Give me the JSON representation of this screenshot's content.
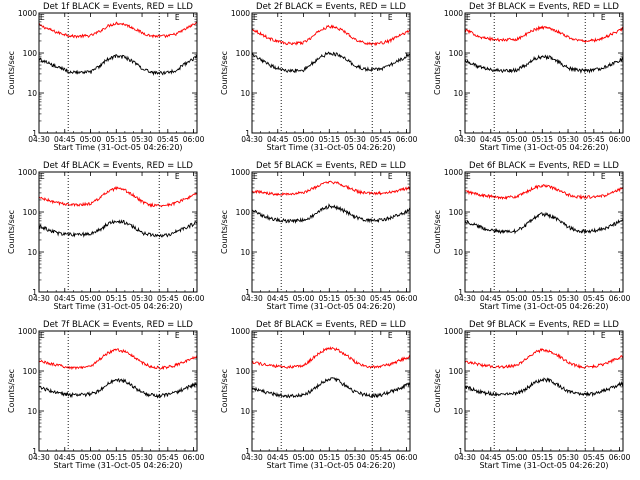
{
  "figure": {
    "x_tick_labels": [
      "04:30",
      "04:45",
      "05:00",
      "05:15",
      "05:30",
      "05:45",
      "06:00"
    ],
    "y_tick_labels": [
      "1",
      "10",
      "100",
      "1000"
    ],
    "xlabel": "Start Time (31-Oct-05 04:26:20)",
    "ylabel": "Counts/sec",
    "marker_E": "E",
    "colors": {
      "events": "#000000",
      "lld": "#ff0000",
      "axes": "#000000"
    }
  },
  "chart_data": [
    {
      "type": "line",
      "title": "Det 1f BLACK = Events, RED = LLD",
      "xlabel": "Start Time (31-Oct-05 04:26:20)",
      "ylabel": "Counts/sec",
      "y_scale": "log",
      "ylim": [
        1,
        1000
      ],
      "xlim": [
        "04:30",
        "06:02"
      ],
      "x_ticks": [
        "04:30",
        "04:45",
        "05:00",
        "05:15",
        "05:30",
        "05:45",
        "06:00"
      ],
      "y_ticks": [
        1,
        10,
        100,
        1000
      ],
      "vertical_markers": [
        "04:47",
        "05:40"
      ],
      "x": [
        "04:30",
        "04:40",
        "04:50",
        "05:00",
        "05:05",
        "05:10",
        "05:15",
        "05:20",
        "05:25",
        "05:30",
        "05:35",
        "05:40",
        "05:45",
        "05:50",
        "05:55",
        "06:00",
        "06:02"
      ],
      "series": [
        {
          "name": "LLD",
          "color": "#ff0000",
          "values": [
            500,
            330,
            260,
            270,
            340,
            470,
            560,
            520,
            420,
            320,
            270,
            260,
            265,
            300,
            390,
            520,
            560
          ]
        },
        {
          "name": "Events",
          "color": "#000000",
          "values": [
            70,
            45,
            32,
            33,
            45,
            70,
            85,
            78,
            60,
            42,
            33,
            31,
            32,
            38,
            52,
            72,
            80
          ]
        }
      ]
    },
    {
      "type": "line",
      "title": "Det 2f BLACK = Events, RED = LLD",
      "xlabel": "Start Time (31-Oct-05 04:26:20)",
      "ylabel": "Counts/sec",
      "y_scale": "log",
      "ylim": [
        1,
        1000
      ],
      "xlim": [
        "04:30",
        "06:02"
      ],
      "x_ticks": [
        "04:30",
        "04:45",
        "05:00",
        "05:15",
        "05:30",
        "05:45",
        "06:00"
      ],
      "y_ticks": [
        1,
        10,
        100,
        1000
      ],
      "vertical_markers": [
        "04:47",
        "05:40"
      ],
      "x": [
        "04:30",
        "04:40",
        "04:50",
        "05:00",
        "05:05",
        "05:10",
        "05:15",
        "05:20",
        "05:25",
        "05:30",
        "05:35",
        "05:40",
        "05:45",
        "05:50",
        "05:55",
        "06:00",
        "06:02"
      ],
      "series": [
        {
          "name": "LLD",
          "color": "#ff0000",
          "values": [
            400,
            230,
            170,
            180,
            250,
            380,
            460,
            420,
            320,
            220,
            180,
            170,
            175,
            200,
            260,
            330,
            380
          ]
        },
        {
          "name": "Events",
          "color": "#000000",
          "values": [
            90,
            50,
            35,
            38,
            55,
            80,
            100,
            90,
            68,
            48,
            40,
            38,
            40,
            48,
            62,
            85,
            95
          ]
        }
      ]
    },
    {
      "type": "line",
      "title": "Det 3f BLACK = Events, RED = LLD",
      "xlabel": "Start Time (31-Oct-05 04:26:20)",
      "ylabel": "Counts/sec",
      "y_scale": "log",
      "ylim": [
        1,
        1000
      ],
      "xlim": [
        "04:30",
        "06:02"
      ],
      "x_ticks": [
        "04:30",
        "04:45",
        "05:00",
        "05:15",
        "05:30",
        "05:45",
        "06:00"
      ],
      "y_ticks": [
        1,
        10,
        100,
        1000
      ],
      "vertical_markers": [
        "04:47",
        "05:40"
      ],
      "x": [
        "04:30",
        "04:40",
        "04:50",
        "05:00",
        "05:05",
        "05:10",
        "05:15",
        "05:20",
        "05:25",
        "05:30",
        "05:35",
        "05:40",
        "05:45",
        "05:50",
        "05:55",
        "06:00",
        "06:02"
      ],
      "series": [
        {
          "name": "LLD",
          "color": "#ff0000",
          "values": [
            380,
            240,
            210,
            220,
            280,
            380,
            440,
            410,
            330,
            250,
            210,
            200,
            205,
            230,
            290,
            370,
            410
          ]
        },
        {
          "name": "Events",
          "color": "#000000",
          "values": [
            65,
            42,
            36,
            37,
            48,
            70,
            82,
            76,
            58,
            42,
            37,
            36,
            37,
            42,
            52,
            66,
            72
          ]
        }
      ]
    },
    {
      "type": "line",
      "title": "Det 4f BLACK = Events, RED = LLD",
      "xlabel": "Start Time (31-Oct-05 04:26:20)",
      "ylabel": "Counts/sec",
      "y_scale": "log",
      "ylim": [
        1,
        1000
      ],
      "xlim": [
        "04:30",
        "06:02"
      ],
      "x_ticks": [
        "04:30",
        "04:45",
        "05:00",
        "05:15",
        "05:30",
        "05:45",
        "06:00"
      ],
      "y_ticks": [
        1,
        10,
        100,
        1000
      ],
      "vertical_markers": [
        "04:47",
        "05:40"
      ],
      "x": [
        "04:30",
        "04:40",
        "04:50",
        "05:00",
        "05:05",
        "05:10",
        "05:15",
        "05:20",
        "05:25",
        "05:30",
        "05:35",
        "05:40",
        "05:45",
        "05:50",
        "05:55",
        "06:00",
        "06:02"
      ],
      "series": [
        {
          "name": "LLD",
          "color": "#ff0000",
          "values": [
            230,
            170,
            150,
            160,
            220,
            320,
            390,
            350,
            260,
            180,
            150,
            145,
            150,
            170,
            210,
            260,
            290
          ]
        },
        {
          "name": "Events",
          "color": "#000000",
          "values": [
            45,
            30,
            27,
            28,
            35,
            50,
            60,
            55,
            42,
            30,
            27,
            26,
            27,
            32,
            40,
            50,
            55
          ]
        }
      ]
    },
    {
      "type": "line",
      "title": "Det 5f BLACK = Events, RED = LLD",
      "xlabel": "Start Time (31-Oct-05 04:26:20)",
      "ylabel": "Counts/sec",
      "y_scale": "log",
      "ylim": [
        1,
        1000
      ],
      "xlim": [
        "04:30",
        "06:02"
      ],
      "x_ticks": [
        "04:30",
        "04:45",
        "05:00",
        "05:15",
        "05:30",
        "05:45",
        "06:00"
      ],
      "y_ticks": [
        1,
        10,
        100,
        1000
      ],
      "vertical_markers": [
        "04:47",
        "05:40"
      ],
      "x": [
        "04:30",
        "04:40",
        "04:50",
        "05:00",
        "05:05",
        "05:10",
        "05:15",
        "05:20",
        "05:25",
        "05:30",
        "05:35",
        "05:40",
        "05:45",
        "05:50",
        "05:55",
        "06:00",
        "06:02"
      ],
      "series": [
        {
          "name": "LLD",
          "color": "#ff0000",
          "values": [
            340,
            290,
            280,
            300,
            380,
            480,
            560,
            520,
            430,
            340,
            300,
            290,
            295,
            310,
            340,
            390,
            420
          ]
        },
        {
          "name": "Events",
          "color": "#000000",
          "values": [
            110,
            70,
            60,
            62,
            78,
            110,
            140,
            130,
            100,
            75,
            65,
            62,
            63,
            70,
            82,
            100,
            110
          ]
        }
      ]
    },
    {
      "type": "line",
      "title": "Det 6f BLACK = Events, RED = LLD",
      "xlabel": "Start Time (31-Oct-05 04:26:20)",
      "ylabel": "Counts/sec",
      "y_scale": "log",
      "ylim": [
        1,
        1000
      ],
      "xlim": [
        "04:30",
        "06:02"
      ],
      "x_ticks": [
        "04:30",
        "04:45",
        "05:00",
        "05:15",
        "05:30",
        "05:45",
        "06:00"
      ],
      "y_ticks": [
        1,
        10,
        100,
        1000
      ],
      "vertical_markers": [
        "04:47",
        "05:40"
      ],
      "x": [
        "04:30",
        "04:40",
        "04:50",
        "05:00",
        "05:05",
        "05:10",
        "05:15",
        "05:20",
        "05:25",
        "05:30",
        "05:35",
        "05:40",
        "05:45",
        "05:50",
        "05:55",
        "06:00",
        "06:02"
      ],
      "series": [
        {
          "name": "LLD",
          "color": "#ff0000",
          "values": [
            330,
            260,
            230,
            240,
            300,
            400,
            460,
            420,
            340,
            270,
            240,
            235,
            238,
            250,
            290,
            360,
            400
          ]
        },
        {
          "name": "Events",
          "color": "#000000",
          "values": [
            60,
            40,
            32,
            33,
            45,
            70,
            90,
            80,
            60,
            42,
            35,
            33,
            34,
            38,
            45,
            58,
            65
          ]
        }
      ]
    },
    {
      "type": "line",
      "title": "Det 7f BLACK = Events, RED = LLD",
      "xlabel": "Start Time (31-Oct-05 04:26:20)",
      "ylabel": "Counts/sec",
      "y_scale": "log",
      "ylim": [
        1,
        1000
      ],
      "xlim": [
        "04:30",
        "06:02"
      ],
      "x_ticks": [
        "04:30",
        "04:45",
        "05:00",
        "05:15",
        "05:30",
        "05:45",
        "06:00"
      ],
      "y_ticks": [
        1,
        10,
        100,
        1000
      ],
      "vertical_markers": [
        "04:47",
        "05:40"
      ],
      "x": [
        "04:30",
        "04:40",
        "04:50",
        "05:00",
        "05:05",
        "05:10",
        "05:15",
        "05:20",
        "05:25",
        "05:30",
        "05:35",
        "05:40",
        "05:45",
        "05:50",
        "05:55",
        "06:00",
        "06:02"
      ],
      "series": [
        {
          "name": "LLD",
          "color": "#ff0000",
          "values": [
            180,
            140,
            120,
            130,
            190,
            280,
            340,
            310,
            230,
            160,
            130,
            120,
            125,
            140,
            170,
            210,
            240
          ]
        },
        {
          "name": "Events",
          "color": "#000000",
          "values": [
            40,
            28,
            25,
            26,
            32,
            48,
            60,
            55,
            40,
            29,
            25,
            24,
            25,
            30,
            36,
            45,
            50
          ]
        }
      ]
    },
    {
      "type": "line",
      "title": "Det 8f BLACK = Events, RED = LLD",
      "xlabel": "Start Time (31-Oct-05 04:26:20)",
      "ylabel": "Counts/sec",
      "y_scale": "log",
      "ylim": [
        1,
        1000
      ],
      "xlim": [
        "04:30",
        "06:02"
      ],
      "x_ticks": [
        "04:30",
        "04:45",
        "05:00",
        "05:15",
        "05:30",
        "05:45",
        "06:00"
      ],
      "y_ticks": [
        1,
        10,
        100,
        1000
      ],
      "vertical_markers": [
        "04:47",
        "05:40"
      ],
      "x": [
        "04:30",
        "04:40",
        "04:50",
        "05:00",
        "05:05",
        "05:10",
        "05:15",
        "05:20",
        "05:25",
        "05:30",
        "05:35",
        "05:40",
        "05:45",
        "05:50",
        "05:55",
        "06:00",
        "06:02"
      ],
      "series": [
        {
          "name": "LLD",
          "color": "#ff0000",
          "values": [
            170,
            135,
            125,
            135,
            200,
            300,
            380,
            340,
            250,
            170,
            135,
            125,
            130,
            145,
            175,
            215,
            240
          ]
        },
        {
          "name": "Events",
          "color": "#000000",
          "values": [
            38,
            27,
            24,
            25,
            32,
            50,
            65,
            58,
            42,
            30,
            26,
            24,
            25,
            29,
            36,
            45,
            50
          ]
        }
      ]
    },
    {
      "type": "line",
      "title": "Det 9f BLACK = Events, RED = LLD",
      "xlabel": "Start Time (31-Oct-05 04:26:20)",
      "ylabel": "Counts/sec",
      "y_scale": "log",
      "ylim": [
        1,
        1000
      ],
      "xlim": [
        "04:30",
        "06:02"
      ],
      "x_ticks": [
        "04:30",
        "04:45",
        "05:00",
        "05:15",
        "05:30",
        "05:45",
        "06:00"
      ],
      "y_ticks": [
        1,
        10,
        100,
        1000
      ],
      "vertical_markers": [
        "04:47",
        "05:40"
      ],
      "x": [
        "04:30",
        "04:40",
        "04:50",
        "05:00",
        "05:05",
        "05:10",
        "05:15",
        "05:20",
        "05:25",
        "05:30",
        "05:35",
        "05:40",
        "05:45",
        "05:50",
        "05:55",
        "06:00",
        "06:02"
      ],
      "series": [
        {
          "name": "LLD",
          "color": "#ff0000",
          "values": [
            175,
            140,
            125,
            135,
            190,
            280,
            340,
            300,
            230,
            165,
            135,
            125,
            130,
            145,
            175,
            215,
            240
          ]
        },
        {
          "name": "Events",
          "color": "#000000",
          "values": [
            40,
            29,
            26,
            27,
            34,
            50,
            62,
            56,
            42,
            31,
            27,
            26,
            27,
            31,
            38,
            46,
            50
          ]
        }
      ]
    }
  ]
}
